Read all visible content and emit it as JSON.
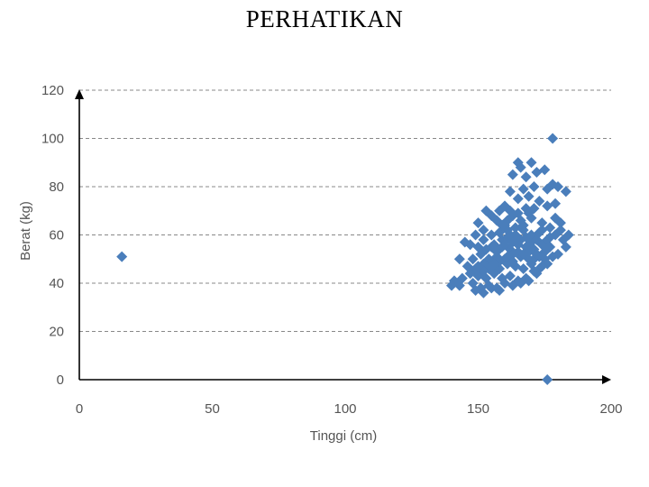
{
  "slide": {
    "title": "PERHATIKAN"
  },
  "chart_data": {
    "type": "scatter",
    "title": "",
    "xlabel": "Tinggi (cm)",
    "ylabel": "Berat (kg)",
    "xlim": [
      0,
      200
    ],
    "ylim": [
      0,
      120
    ],
    "xticks": [
      0,
      50,
      100,
      150,
      200
    ],
    "yticks": [
      0,
      20,
      40,
      60,
      80,
      100,
      120
    ],
    "xtick_labels": [
      "0",
      "50",
      "100",
      "150",
      "200"
    ],
    "ytick_labels": [
      "0",
      "20",
      "40",
      "60",
      "80",
      "100",
      "120"
    ],
    "grid": "horizontal dashed",
    "marker": "diamond",
    "marker_color": "#4A7EBB",
    "gridline_color": "#888888",
    "axis_color": "#000000",
    "points": [
      [
        16,
        51
      ],
      [
        176,
        0
      ],
      [
        178,
        100
      ],
      [
        165,
        90
      ],
      [
        170,
        90
      ],
      [
        163,
        85
      ],
      [
        168,
        84
      ],
      [
        175,
        87
      ],
      [
        172,
        86
      ],
      [
        166,
        88
      ],
      [
        171,
        80
      ],
      [
        176,
        79
      ],
      [
        178,
        81
      ],
      [
        183,
        78
      ],
      [
        167,
        79
      ],
      [
        162,
        78
      ],
      [
        180,
        80
      ],
      [
        169,
        76
      ],
      [
        173,
        74
      ],
      [
        176,
        72
      ],
      [
        179,
        73
      ],
      [
        165,
        75
      ],
      [
        160,
        72
      ],
      [
        168,
        71
      ],
      [
        153,
        70
      ],
      [
        158,
        70
      ],
      [
        162,
        70
      ],
      [
        155,
        68
      ],
      [
        150,
        65
      ],
      [
        152,
        62
      ],
      [
        157,
        66
      ],
      [
        160,
        64
      ],
      [
        163,
        68
      ],
      [
        166,
        66
      ],
      [
        170,
        67
      ],
      [
        174,
        65
      ],
      [
        177,
        63
      ],
      [
        181,
        65
      ],
      [
        184,
        60
      ],
      [
        182,
        58
      ],
      [
        179,
        60
      ],
      [
        176,
        58
      ],
      [
        173,
        61
      ],
      [
        170,
        60
      ],
      [
        167,
        62
      ],
      [
        164,
        60
      ],
      [
        161,
        59
      ],
      [
        158,
        61
      ],
      [
        155,
        60
      ],
      [
        152,
        58
      ],
      [
        149,
        60
      ],
      [
        147,
        56
      ],
      [
        150,
        55
      ],
      [
        153,
        54
      ],
      [
        156,
        56
      ],
      [
        159,
        55
      ],
      [
        162,
        54
      ],
      [
        165,
        56
      ],
      [
        168,
        55
      ],
      [
        171,
        54
      ],
      [
        174,
        56
      ],
      [
        177,
        55
      ],
      [
        183,
        55
      ],
      [
        180,
        52
      ],
      [
        175,
        50
      ],
      [
        172,
        52
      ],
      [
        169,
        50
      ],
      [
        166,
        51
      ],
      [
        163,
        52
      ],
      [
        160,
        50
      ],
      [
        157,
        51
      ],
      [
        154,
        50
      ],
      [
        151,
        52
      ],
      [
        148,
        50
      ],
      [
        145,
        57
      ],
      [
        143,
        50
      ],
      [
        146,
        47
      ],
      [
        149,
        46
      ],
      [
        152,
        48
      ],
      [
        155,
        47
      ],
      [
        158,
        46
      ],
      [
        161,
        48
      ],
      [
        164,
        47
      ],
      [
        167,
        46
      ],
      [
        170,
        48
      ],
      [
        173,
        46
      ],
      [
        176,
        48
      ],
      [
        178,
        51
      ],
      [
        172,
        44
      ],
      [
        168,
        42
      ],
      [
        165,
        41
      ],
      [
        162,
        43
      ],
      [
        159,
        42
      ],
      [
        156,
        44
      ],
      [
        153,
        42
      ],
      [
        150,
        43
      ],
      [
        147,
        44
      ],
      [
        144,
        42
      ],
      [
        141,
        41
      ],
      [
        140,
        39
      ],
      [
        143,
        39
      ],
      [
        148,
        40
      ],
      [
        151,
        38
      ],
      [
        154,
        39
      ],
      [
        157,
        38
      ],
      [
        160,
        40
      ],
      [
        163,
        39
      ],
      [
        166,
        40
      ],
      [
        169,
        41
      ],
      [
        149,
        37
      ],
      [
        152,
        36
      ],
      [
        155,
        38
      ],
      [
        158,
        37
      ],
      [
        171,
        45
      ],
      [
        174,
        47
      ],
      [
        159,
        58
      ],
      [
        161,
        62
      ],
      [
        163,
        57
      ],
      [
        157,
        53
      ],
      [
        155,
        55
      ],
      [
        160,
        56
      ],
      [
        162,
        60
      ],
      [
        164,
        63
      ],
      [
        166,
        58
      ],
      [
        168,
        59
      ],
      [
        170,
        57
      ],
      [
        172,
        58
      ],
      [
        174,
        62
      ],
      [
        158,
        49
      ],
      [
        156,
        48
      ],
      [
        154,
        46
      ],
      [
        152,
        45
      ],
      [
        150,
        47
      ],
      [
        161,
        51
      ],
      [
        163,
        49
      ],
      [
        165,
        53
      ],
      [
        167,
        52
      ],
      [
        169,
        53
      ],
      [
        171,
        50
      ],
      [
        173,
        51
      ],
      [
        175,
        53
      ],
      [
        177,
        59
      ],
      [
        179,
        67
      ],
      [
        181,
        62
      ],
      [
        167,
        64
      ],
      [
        169,
        69
      ],
      [
        171,
        71
      ],
      [
        165,
        69
      ],
      [
        161,
        66
      ],
      [
        159,
        64
      ]
    ]
  }
}
